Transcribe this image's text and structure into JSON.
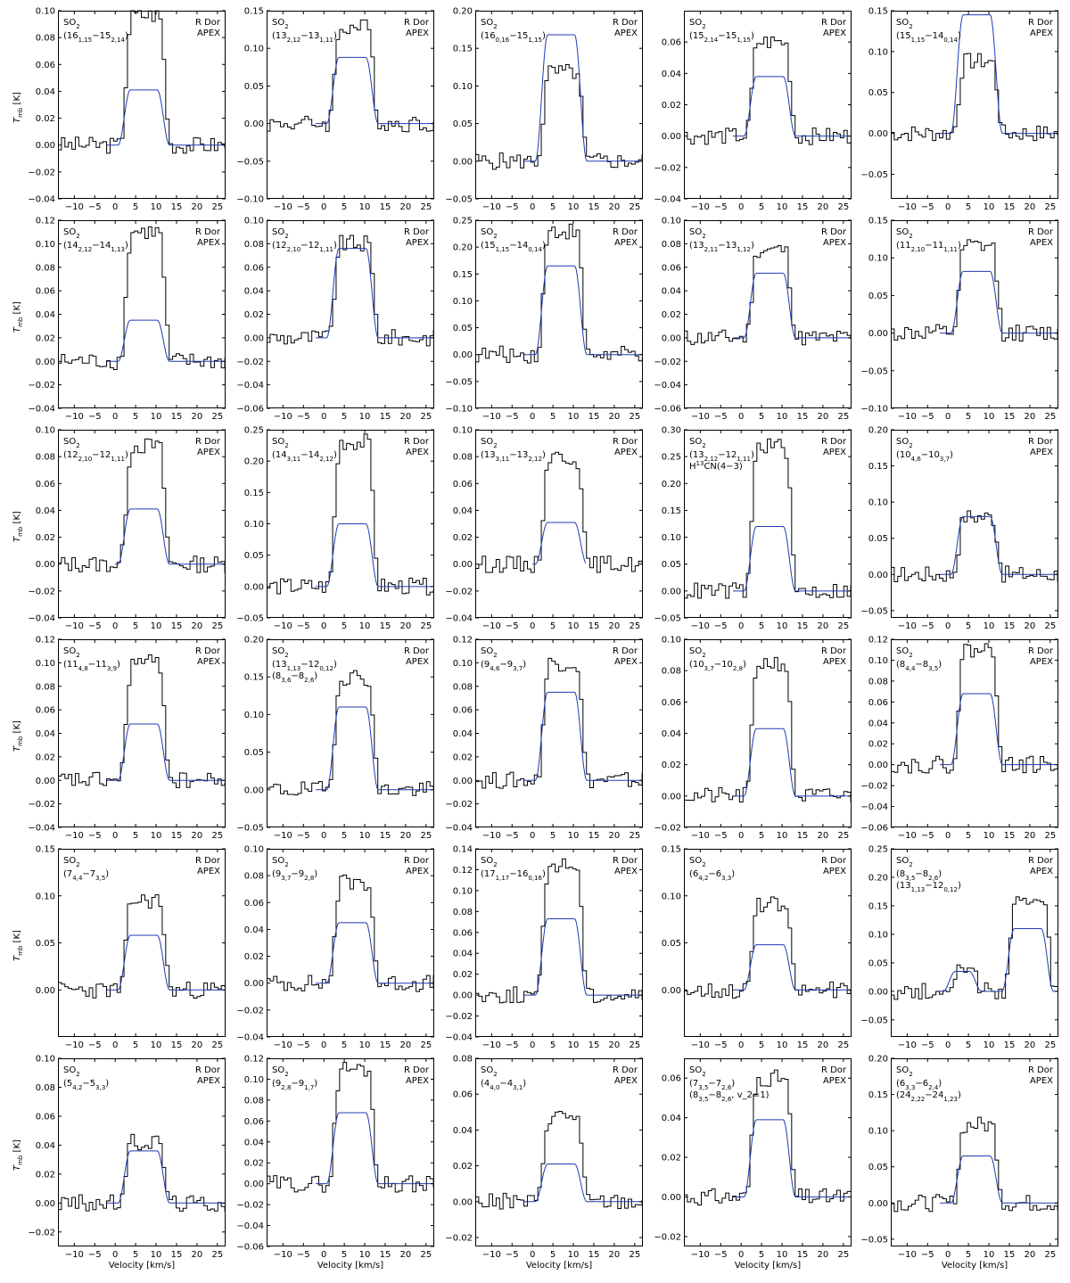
{
  "figure": {
    "shared_xlabel": "Velocity [km/s]",
    "shared_ylabel": "T_mb [K]",
    "source": "R Dor",
    "telescope": "APEX",
    "colors": {
      "observed": "#000000",
      "model": "#1f3bb3"
    }
  },
  "chart_data": [
    {
      "type": "line",
      "species": "SO2",
      "transitions": [
        "(16_{1,15}−15_{2,14})"
      ],
      "xlim": [
        -14,
        27
      ],
      "ylim": [
        -0.04,
        0.1
      ],
      "yticks": [
        -0.04,
        -0.02,
        0.0,
        0.02,
        0.04,
        0.06,
        0.08,
        0.1
      ],
      "model_peak": 0.041,
      "obs_peak": 0.097,
      "xticks": [
        -10,
        -5,
        0,
        5,
        10,
        15,
        20,
        25
      ]
    },
    {
      "type": "line",
      "species": "SO2",
      "transitions": [
        "(13_{2,12}−13_{1,11})"
      ],
      "xlim": [
        -14,
        27
      ],
      "ylim": [
        -0.1,
        0.15
      ],
      "yticks": [
        -0.1,
        -0.05,
        0.0,
        0.05,
        0.1,
        0.15
      ],
      "model_peak": 0.088,
      "obs_peak": 0.128,
      "xticks": [
        -10,
        -5,
        0,
        5,
        10,
        15,
        20,
        25
      ]
    },
    {
      "type": "line",
      "species": "SO2",
      "transitions": [
        "(16_{0,16}−15_{1,15})"
      ],
      "xlim": [
        -14,
        27
      ],
      "ylim": [
        -0.05,
        0.2
      ],
      "yticks": [
        -0.05,
        0.0,
        0.05,
        0.1,
        0.15,
        0.2
      ],
      "model_peak": 0.168,
      "obs_peak": 0.118,
      "xticks": [
        -10,
        -5,
        0,
        5,
        10,
        15,
        20,
        25
      ]
    },
    {
      "type": "line",
      "species": "SO2",
      "transitions": [
        "(15_{2,14}−15_{1,15})"
      ],
      "xlim": [
        -14,
        27
      ],
      "ylim": [
        -0.04,
        0.08
      ],
      "yticks": [
        -0.04,
        -0.02,
        0.0,
        0.02,
        0.04,
        0.06
      ],
      "model_peak": 0.038,
      "obs_peak": 0.06,
      "xticks": [
        -10,
        -5,
        0,
        5,
        10,
        15,
        20,
        25
      ]
    },
    {
      "type": "line",
      "species": "SO2",
      "transitions": [
        "(15_{1,15}−14_{0,14})"
      ],
      "xlim": [
        -14,
        27
      ],
      "ylim": [
        -0.08,
        0.15
      ],
      "yticks": [
        -0.05,
        0.0,
        0.05,
        0.1,
        0.15
      ],
      "model_peak": 0.145,
      "obs_peak": 0.088,
      "xticks": [
        -10,
        -5,
        0,
        5,
        10,
        15,
        20,
        25
      ]
    },
    {
      "type": "line",
      "species": "SO2",
      "transitions": [
        "(14_{2,12}−14_{1,13})"
      ],
      "xlim": [
        -14,
        27
      ],
      "ylim": [
        -0.04,
        0.12
      ],
      "yticks": [
        -0.04,
        -0.02,
        0.0,
        0.02,
        0.04,
        0.06,
        0.08,
        0.1,
        0.12
      ],
      "model_peak": 0.035,
      "obs_peak": 0.11,
      "xticks": [
        -10,
        -5,
        0,
        5,
        10,
        15,
        20,
        25
      ]
    },
    {
      "type": "line",
      "species": "SO2",
      "transitions": [
        "(12_{2,10}−12_{1,11})"
      ],
      "xlim": [
        -14,
        27
      ],
      "ylim": [
        -0.06,
        0.1
      ],
      "yticks": [
        -0.06,
        -0.04,
        -0.02,
        0.0,
        0.02,
        0.04,
        0.06,
        0.08,
        0.1
      ],
      "model_peak": 0.076,
      "obs_peak": 0.08,
      "xticks": [
        -10,
        -5,
        0,
        5,
        10,
        15,
        20,
        25
      ]
    },
    {
      "type": "line",
      "species": "SO2",
      "transitions": [
        "(15_{1,15}−14_{0,14})"
      ],
      "xlim": [
        -14,
        27
      ],
      "ylim": [
        -0.1,
        0.25
      ],
      "yticks": [
        -0.1,
        -0.05,
        0.0,
        0.05,
        0.1,
        0.15,
        0.2,
        0.25
      ],
      "model_peak": 0.165,
      "obs_peak": 0.23,
      "xticks": [
        -10,
        -5,
        0,
        5,
        10,
        15,
        20,
        25
      ]
    },
    {
      "type": "line",
      "species": "SO2",
      "transitions": [
        "(13_{2,11}−13_{1,12})"
      ],
      "xlim": [
        -14,
        27
      ],
      "ylim": [
        -0.06,
        0.1
      ],
      "yticks": [
        -0.06,
        -0.04,
        -0.02,
        0.0,
        0.02,
        0.04,
        0.06,
        0.08,
        0.1
      ],
      "model_peak": 0.055,
      "obs_peak": 0.075,
      "xticks": [
        -10,
        -5,
        0,
        5,
        10,
        15,
        20,
        25
      ]
    },
    {
      "type": "line",
      "species": "SO2",
      "transitions": [
        "(11_{2,10}−11_{1,11})"
      ],
      "xlim": [
        -14,
        27
      ],
      "ylim": [
        -0.1,
        0.15
      ],
      "yticks": [
        -0.1,
        -0.05,
        0.0,
        0.05,
        0.1,
        0.15
      ],
      "model_peak": 0.082,
      "obs_peak": 0.115,
      "xticks": [
        -10,
        -5,
        0,
        5,
        10,
        15,
        20,
        25
      ]
    },
    {
      "type": "line",
      "species": "SO2",
      "transitions": [
        "(12_{2,10}−12_{1,11})"
      ],
      "xlim": [
        -14,
        27
      ],
      "ylim": [
        -0.04,
        0.1
      ],
      "yticks": [
        -0.04,
        -0.02,
        0.0,
        0.02,
        0.04,
        0.06,
        0.08,
        0.1
      ],
      "model_peak": 0.041,
      "obs_peak": 0.088,
      "xticks": [
        -10,
        -5,
        0,
        5,
        10,
        15,
        20,
        25
      ]
    },
    {
      "type": "line",
      "species": "SO2",
      "transitions": [
        "(14_{3,11}−14_{2,12})"
      ],
      "xlim": [
        -14,
        27
      ],
      "ylim": [
        -0.05,
        0.25
      ],
      "yticks": [
        -0.05,
        0.0,
        0.05,
        0.1,
        0.15,
        0.2,
        0.25
      ],
      "model_peak": 0.1,
      "obs_peak": 0.23,
      "xticks": [
        -10,
        -5,
        0,
        5,
        10,
        15,
        20,
        25
      ]
    },
    {
      "type": "line",
      "species": "SO2",
      "transitions": [
        "(13_{3,11}−13_{2,12})"
      ],
      "xlim": [
        -14,
        27
      ],
      "ylim": [
        -0.04,
        0.1
      ],
      "yticks": [
        -0.04,
        -0.02,
        0.0,
        0.02,
        0.04,
        0.06,
        0.08,
        0.1
      ],
      "model_peak": 0.031,
      "obs_peak": 0.08,
      "xticks": [
        -10,
        -5,
        0,
        5,
        10,
        15,
        20,
        25
      ]
    },
    {
      "type": "line",
      "species": "SO2",
      "transitions": [
        "(13_{2,12}−12_{1,11})",
        "H^{13}CN(4−3)"
      ],
      "xlim": [
        -14,
        27
      ],
      "ylim": [
        -0.05,
        0.3
      ],
      "yticks": [
        -0.05,
        0.0,
        0.05,
        0.1,
        0.15,
        0.2,
        0.25,
        0.3
      ],
      "model_peak": 0.12,
      "obs_peak": 0.27,
      "xticks": [
        -10,
        -5,
        0,
        5,
        10,
        15,
        20,
        25
      ]
    },
    {
      "type": "line",
      "species": "SO2",
      "transitions": [
        "(10_{4,6}−10_{3,7})"
      ],
      "xlim": [
        -14,
        27
      ],
      "ylim": [
        -0.06,
        0.2
      ],
      "yticks": [
        -0.05,
        0.0,
        0.05,
        0.1,
        0.15,
        0.2
      ],
      "model_peak": 0.08,
      "obs_peak": 0.08,
      "xticks": [
        -10,
        -5,
        0,
        5,
        10,
        15,
        20,
        25
      ]
    },
    {
      "type": "line",
      "species": "SO2",
      "transitions": [
        "(11_{4,8}−11_{3,9})"
      ],
      "xlim": [
        -14,
        27
      ],
      "ylim": [
        -0.04,
        0.12
      ],
      "yticks": [
        -0.04,
        -0.02,
        0.0,
        0.02,
        0.04,
        0.06,
        0.08,
        0.1,
        0.12
      ],
      "model_peak": 0.048,
      "obs_peak": 0.1,
      "xticks": [
        -10,
        -5,
        0,
        5,
        10,
        15,
        20,
        25
      ]
    },
    {
      "type": "line",
      "species": "SO2",
      "transitions": [
        "(13_{1,13}−12_{0,12})",
        "(8_{3,6}−8_{2,6})"
      ],
      "xlim": [
        -14,
        27
      ],
      "ylim": [
        -0.05,
        0.2
      ],
      "yticks": [
        -0.05,
        0.0,
        0.05,
        0.1,
        0.15,
        0.2
      ],
      "model_peak": 0.11,
      "obs_peak": 0.15,
      "xticks": [
        -10,
        -5,
        0,
        5,
        10,
        15,
        20,
        25
      ]
    },
    {
      "type": "line",
      "species": "SO2",
      "transitions": [
        "(9_{4,6}−9_{3,7})"
      ],
      "xlim": [
        -14,
        27
      ],
      "ylim": [
        -0.04,
        0.12
      ],
      "yticks": [
        -0.04,
        -0.02,
        0.0,
        0.02,
        0.04,
        0.06,
        0.08,
        0.1,
        0.12
      ],
      "model_peak": 0.075,
      "obs_peak": 0.1,
      "xticks": [
        -10,
        -5,
        0,
        5,
        10,
        15,
        20,
        25
      ]
    },
    {
      "type": "line",
      "species": "SO2",
      "transitions": [
        "(10_{3,7}−10_{2,8})"
      ],
      "xlim": [
        -14,
        27
      ],
      "ylim": [
        -0.02,
        0.1
      ],
      "yticks": [
        -0.02,
        0.0,
        0.02,
        0.04,
        0.06,
        0.08,
        0.1
      ],
      "model_peak": 0.043,
      "obs_peak": 0.085,
      "xticks": [
        -10,
        -5,
        0,
        5,
        10,
        15,
        20,
        25
      ]
    },
    {
      "type": "line",
      "species": "SO2",
      "transitions": [
        "(8_{4,4}−8_{3,5})"
      ],
      "xlim": [
        -14,
        27
      ],
      "ylim": [
        -0.06,
        0.12
      ],
      "yticks": [
        -0.06,
        -0.04,
        -0.02,
        0.0,
        0.02,
        0.04,
        0.06,
        0.08,
        0.1,
        0.12
      ],
      "model_peak": 0.068,
      "obs_peak": 0.11,
      "xticks": [
        -10,
        -5,
        0,
        5,
        10,
        15,
        20,
        25
      ]
    },
    {
      "type": "line",
      "species": "SO2",
      "transitions": [
        "(7_{4,4}−7_{3,5})"
      ],
      "xlim": [
        -14,
        27
      ],
      "ylim": [
        -0.05,
        0.15
      ],
      "yticks": [
        0.0,
        0.05,
        0.1,
        0.15
      ],
      "model_peak": 0.058,
      "obs_peak": 0.095,
      "xticks": [
        -10,
        -5,
        0,
        5,
        10,
        15,
        20,
        25
      ]
    },
    {
      "type": "line",
      "species": "SO2",
      "transitions": [
        "(9_{3,7}−9_{2,8})"
      ],
      "xlim": [
        -14,
        27
      ],
      "ylim": [
        -0.04,
        0.1
      ],
      "yticks": [
        -0.04,
        -0.02,
        0.0,
        0.02,
        0.04,
        0.06,
        0.08,
        0.1
      ],
      "model_peak": 0.045,
      "obs_peak": 0.075,
      "xticks": [
        -10,
        -5,
        0,
        5,
        10,
        15,
        20,
        25
      ]
    },
    {
      "type": "line",
      "species": "SO2",
      "transitions": [
        "(17_{1,17}−16_{0,16})"
      ],
      "xlim": [
        -14,
        27
      ],
      "ylim": [
        -0.04,
        0.14
      ],
      "yticks": [
        -0.04,
        -0.02,
        0.0,
        0.02,
        0.04,
        0.06,
        0.08,
        0.1,
        0.12,
        0.14
      ],
      "model_peak": 0.073,
      "obs_peak": 0.125,
      "xticks": [
        -10,
        -5,
        0,
        5,
        10,
        15,
        20,
        25
      ]
    },
    {
      "type": "line",
      "species": "SO2",
      "transitions": [
        "(6_{4,2}−6_{3,3})"
      ],
      "xlim": [
        -14,
        27
      ],
      "ylim": [
        -0.05,
        0.15
      ],
      "yticks": [
        0.0,
        0.05,
        0.1,
        0.15
      ],
      "model_peak": 0.048,
      "obs_peak": 0.09,
      "xticks": [
        -10,
        -5,
        0,
        5,
        10,
        15,
        20,
        25
      ]
    },
    {
      "type": "line",
      "species": "SO2",
      "transitions": [
        "(8_{3,5}−8_{2,6})",
        "(13_{1,13}−12_{0,12})"
      ],
      "xlim": [
        -14,
        27
      ],
      "ylim": [
        -0.08,
        0.25
      ],
      "yticks": [
        -0.05,
        0.0,
        0.05,
        0.1,
        0.15,
        0.2,
        0.25
      ],
      "model_peak": 0.11,
      "obs_peak": 0.155,
      "xticks": [
        -10,
        -5,
        0,
        5,
        10,
        15,
        20,
        25
      ]
    },
    {
      "type": "line",
      "species": "SO2",
      "transitions": [
        "(5_{4,2}−5_{3,3})"
      ],
      "xlim": [
        -14,
        27
      ],
      "ylim": [
        -0.03,
        0.1
      ],
      "yticks": [
        -0.02,
        0.0,
        0.02,
        0.04,
        0.06,
        0.08,
        0.1
      ],
      "model_peak": 0.036,
      "obs_peak": 0.042,
      "xticks": [
        -10,
        -5,
        0,
        5,
        10,
        15,
        20,
        25
      ]
    },
    {
      "type": "line",
      "species": "SO2",
      "transitions": [
        "(9_{2,8}−9_{1,7})"
      ],
      "xlim": [
        -14,
        27
      ],
      "ylim": [
        -0.06,
        0.12
      ],
      "yticks": [
        -0.06,
        -0.04,
        -0.02,
        0.0,
        0.02,
        0.04,
        0.06,
        0.08,
        0.1,
        0.12
      ],
      "model_peak": 0.068,
      "obs_peak": 0.11,
      "xticks": [
        -10,
        -5,
        0,
        5,
        10,
        15,
        20,
        25
      ]
    },
    {
      "type": "line",
      "species": "SO2",
      "transitions": [
        "(4_{4,0}−4_{3,1})"
      ],
      "xlim": [
        -14,
        27
      ],
      "ylim": [
        -0.025,
        0.08
      ],
      "yticks": [
        -0.02,
        0.0,
        0.02,
        0.04,
        0.06,
        0.08
      ],
      "model_peak": 0.021,
      "obs_peak": 0.048,
      "xticks": [
        -10,
        -5,
        0,
        5,
        10,
        15,
        20,
        25
      ]
    },
    {
      "type": "line",
      "species": "SO2",
      "transitions": [
        "(7_{3,5}−7_{2,6})",
        "(8_{3,5}−8_{2,6}, v_2=1)"
      ],
      "xlim": [
        -14,
        27
      ],
      "ylim": [
        -0.025,
        0.07
      ],
      "yticks": [
        -0.02,
        0.0,
        0.02,
        0.04,
        0.06
      ],
      "model_peak": 0.039,
      "obs_peak": 0.06,
      "xticks": [
        -10,
        -5,
        0,
        5,
        10,
        15,
        20,
        25
      ]
    },
    {
      "type": "line",
      "species": "SO2",
      "transitions": [
        "(6_{3,3}−6_{2,4})",
        "(24_{2,22}−24_{1,23})"
      ],
      "xlim": [
        -14,
        27
      ],
      "ylim": [
        -0.06,
        0.2
      ],
      "yticks": [
        -0.05,
        0.0,
        0.05,
        0.1,
        0.15,
        0.2
      ],
      "model_peak": 0.065,
      "obs_peak": 0.108,
      "xticks": [
        -10,
        -5,
        0,
        5,
        10,
        15,
        20,
        25
      ]
    }
  ]
}
